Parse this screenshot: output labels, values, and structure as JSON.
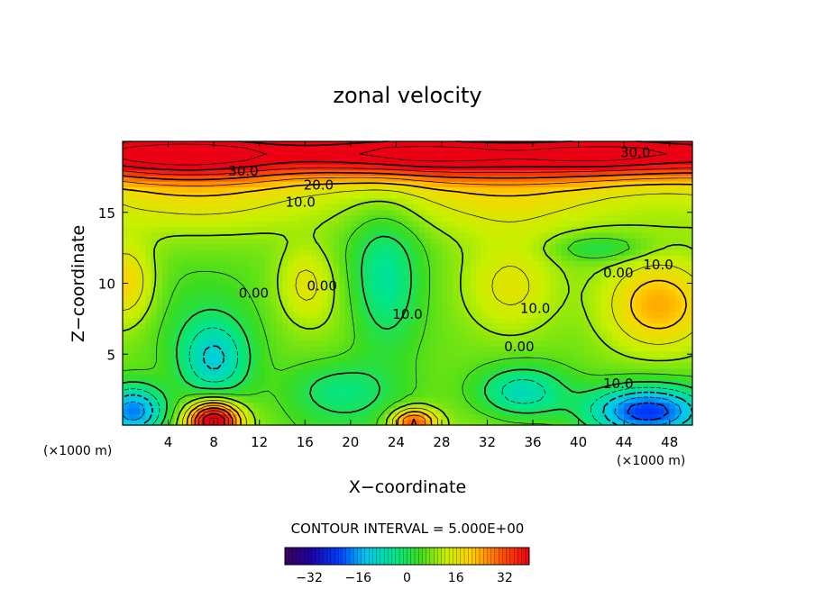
{
  "chart_data": {
    "type": "heatmap",
    "title": "zonal velocity",
    "xlabel": "X−coordinate",
    "ylabel": "Z−coordinate",
    "x_unit_label": "(×1000 m)",
    "z_unit_label": "(×1000 m)",
    "xlim": [
      0,
      50
    ],
    "zlim": [
      0,
      20
    ],
    "x_ticks": [
      4,
      8,
      12,
      16,
      20,
      24,
      28,
      32,
      36,
      40,
      44,
      48
    ],
    "z_ticks": [
      5,
      10,
      15
    ],
    "contour_interval_text": "CONTOUR INTERVAL = 5.000E+00",
    "contour_interval": 5,
    "colorbar": {
      "range": [
        -40,
        40
      ],
      "ticks": [
        -32,
        -16,
        0,
        16,
        32
      ],
      "tick_labels": [
        "−32",
        "−16",
        "0",
        "16",
        "32"
      ]
    },
    "contour_labels": [
      {
        "text": "30.0",
        "x": 10.6,
        "z": 17.6
      },
      {
        "text": "30.0",
        "x": 45.0,
        "z": 18.9
      },
      {
        "text": "20.0",
        "x": 17.2,
        "z": 16.6
      },
      {
        "text": "10.0",
        "x": 15.6,
        "z": 15.4
      },
      {
        "text": "0.00",
        "x": 11.5,
        "z": 9.0
      },
      {
        "text": "0.00",
        "x": 17.5,
        "z": 9.5
      },
      {
        "text": "10.0",
        "x": 25.0,
        "z": 7.5
      },
      {
        "text": "10.0",
        "x": 36.2,
        "z": 7.9
      },
      {
        "text": "0.00",
        "x": 34.8,
        "z": 5.2
      },
      {
        "text": "0.00",
        "x": 43.5,
        "z": 10.4
      },
      {
        "text": "10.0",
        "x": 47.0,
        "z": 11.0
      },
      {
        "text": "10.0",
        "x": 43.5,
        "z": 2.6
      }
    ],
    "field_features": [
      {
        "type": "jet",
        "z": 19.2,
        "amp": 38
      },
      {
        "x": 8,
        "z": 0.3,
        "amp": 40,
        "sx": 2.2,
        "sz": 1.4
      },
      {
        "x": 8,
        "z": 4.5,
        "amp": -18,
        "sx": 3.2,
        "sz": 3.0
      },
      {
        "x": 23,
        "z": 10,
        "amp": -14,
        "sx": 3.2,
        "sz": 4.8
      },
      {
        "x": 35,
        "z": 2.3,
        "amp": -17,
        "sx": 4.0,
        "sz": 1.9
      },
      {
        "x": 46,
        "z": 1.0,
        "amp": -28,
        "sx": 5.0,
        "sz": 1.7
      },
      {
        "x": 1,
        "z": 1.0,
        "amp": -26,
        "sx": 2.8,
        "sz": 1.8
      },
      {
        "x": 47,
        "z": 8.5,
        "amp": 14,
        "sx": 4.5,
        "sz": 3.2
      },
      {
        "x": 0.3,
        "z": 10,
        "amp": 13,
        "sx": 2.5,
        "sz": 2.8
      },
      {
        "x": 34,
        "z": 9.5,
        "amp": 12,
        "sx": 4.5,
        "sz": 3.5
      },
      {
        "x": 25.5,
        "z": 0.2,
        "amp": 26,
        "sx": 2.0,
        "sz": 1.0
      },
      {
        "x": 42,
        "z": 12.5,
        "amp": -8,
        "sx": 4.0,
        "sz": 0.9
      },
      {
        "x": 16,
        "z": 10,
        "amp": 8,
        "sx": 2.4,
        "sz": 2.6
      },
      {
        "x": 19,
        "z": 2.5,
        "amp": -8,
        "sx": 4.5,
        "sz": 2.0
      }
    ]
  }
}
